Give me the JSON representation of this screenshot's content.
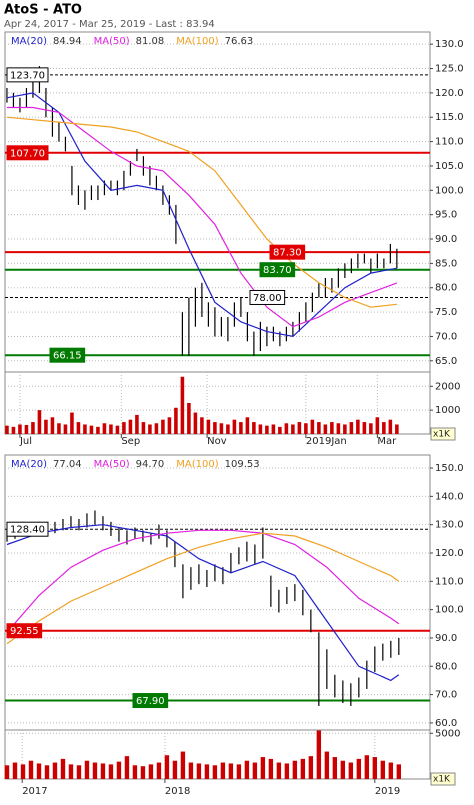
{
  "header": {
    "title": "AtoS - ATO",
    "subtitle": "Apr 24, 2017 - Mar 25, 2019 - Last : 83.94"
  },
  "chart_data": [
    {
      "type": "hlbar",
      "color": "#000000",
      "grid": true,
      "xlim": [
        -0.3,
        65.1
      ],
      "ylim": [
        62.7,
        132.5
      ],
      "yticks": [
        {
          "value": 65,
          "label": "65.0"
        },
        {
          "value": 70,
          "label": "70.0"
        },
        {
          "value": 75,
          "label": "75.0"
        },
        {
          "value": 80,
          "label": "80.0"
        },
        {
          "value": 85,
          "label": "85.0"
        },
        {
          "value": 90,
          "label": "90.0"
        },
        {
          "value": 95,
          "label": "95.0"
        },
        {
          "value": 100,
          "label": "100.0"
        },
        {
          "value": 105,
          "label": "105.0"
        },
        {
          "value": 110,
          "label": "110.0"
        },
        {
          "value": 115,
          "label": "115.0"
        },
        {
          "value": 120,
          "label": "120.0"
        },
        {
          "value": 125,
          "label": "125.0"
        },
        {
          "value": 130,
          "label": "130.0"
        }
      ],
      "high": [
        121,
        120,
        119,
        121,
        123,
        125.5,
        121,
        117,
        114,
        111,
        105,
        101,
        100,
        101,
        101,
        102,
        102,
        102,
        104,
        106,
        108.5,
        107,
        105,
        103,
        101,
        99,
        97,
        75,
        78,
        80,
        81,
        77,
        76,
        74,
        74,
        77,
        78,
        75,
        71,
        73,
        72,
        72,
        71,
        72,
        73,
        75,
        77,
        79,
        81,
        82,
        82,
        84,
        85,
        86,
        87,
        87,
        86,
        87,
        86,
        89,
        88
      ],
      "low": [
        118,
        117,
        116,
        117,
        119,
        120,
        115,
        111,
        110,
        108,
        99,
        97,
        96,
        98,
        98,
        99,
        100,
        99,
        100,
        103,
        106,
        103,
        101,
        100,
        97,
        95,
        89,
        66,
        66,
        72,
        74,
        72,
        70,
        70,
        69,
        72,
        74,
        69,
        66,
        67,
        68,
        69,
        68,
        69,
        70,
        71,
        73,
        75,
        78,
        78,
        79,
        80,
        82,
        83,
        84,
        85,
        83,
        84,
        84,
        85,
        84
      ],
      "series": [
        {
          "name": "MA(20)",
          "last": 84.94,
          "color": "#1f1fcc",
          "x": [
            0,
            4,
            8,
            12,
            16,
            20,
            24,
            28,
            32,
            36,
            40,
            44,
            48,
            52,
            56,
            60
          ],
          "values": [
            119,
            120,
            116,
            106,
            100,
            101,
            100,
            88,
            77,
            73,
            71,
            70,
            75,
            80,
            83,
            84
          ]
        },
        {
          "name": "MA(50)",
          "last": 81.08,
          "color": "#e020e0",
          "x": [
            0,
            4,
            8,
            12,
            16,
            20,
            24,
            28,
            32,
            36,
            40,
            44,
            48,
            52,
            56,
            60
          ],
          "values": [
            117,
            117,
            116,
            112,
            108,
            105,
            104,
            99,
            93,
            83,
            76,
            72,
            74,
            77,
            79,
            81
          ]
        },
        {
          "name": "MA(100)",
          "last": 76.63,
          "color": "#f0a020",
          "x": [
            0,
            4,
            8,
            12,
            16,
            20,
            24,
            28,
            32,
            36,
            40,
            44,
            48,
            52,
            56,
            60
          ],
          "values": [
            115,
            114.5,
            114,
            113.5,
            113,
            112,
            110,
            108,
            104,
            97,
            90,
            85,
            81,
            78,
            76,
            76.6
          ]
        }
      ],
      "levels": [
        {
          "value": 123.7,
          "label": "123.70",
          "color": "#000000",
          "style": "dashed"
        },
        {
          "value": 107.7,
          "label": "107.70",
          "color": "#e00000",
          "style": "solid"
        },
        {
          "value": 87.3,
          "label": "87.30",
          "color": "#e00000",
          "style": "solid"
        },
        {
          "value": 83.7,
          "label": "83.70",
          "color": "#007a00",
          "style": "solid"
        },
        {
          "value": 78,
          "label": "78.00",
          "color": "#000000",
          "style": "dashed"
        },
        {
          "value": 66.15,
          "label": "66.15",
          "color": "#007a00",
          "style": "solid"
        }
      ]
    },
    {
      "type": "bar",
      "color": "#cc0000",
      "grid": true,
      "unit": "x1K",
      "xlim": [
        -0.3,
        65.1
      ],
      "ylim": [
        0,
        2600
      ],
      "yticks": [
        1000,
        2000
      ],
      "xticks": [
        {
          "value": 2,
          "label": "Jul"
        },
        {
          "value": 17.6,
          "label": "Sep"
        },
        {
          "value": 30.8,
          "label": "Nov"
        },
        {
          "value": 46,
          "label": "2019Jan"
        },
        {
          "value": 57,
          "label": "Mar"
        }
      ],
      "values": [
        350,
        300,
        400,
        380,
        500,
        1000,
        600,
        700,
        450,
        400,
        900,
        500,
        400,
        350,
        300,
        450,
        400,
        350,
        500,
        600,
        800,
        500,
        400,
        450,
        600,
        700,
        1100,
        2400,
        1300,
        900,
        700,
        600,
        500,
        450,
        400,
        600,
        500,
        700,
        500,
        400,
        350,
        400,
        300,
        450,
        400,
        500,
        450,
        600,
        500,
        400,
        500,
        450,
        400,
        500,
        600,
        500,
        450,
        700,
        500,
        600,
        400
      ]
    },
    {
      "type": "hlbar",
      "color": "#000000",
      "grid": true,
      "xlim": [
        -0.25,
        52.9
      ],
      "ylim": [
        57.5,
        154.6
      ],
      "yticks": [
        {
          "value": 60,
          "label": "60.0"
        },
        {
          "value": 70,
          "label": "70.0"
        },
        {
          "value": 80,
          "label": "80.0"
        },
        {
          "value": 90,
          "label": "90.0"
        },
        {
          "value": 100,
          "label": "100.0"
        },
        {
          "value": 110,
          "label": "110.0"
        },
        {
          "value": 120,
          "label": "120.0"
        },
        {
          "value": 130,
          "label": "130.0"
        },
        {
          "value": 140,
          "label": "140.0"
        },
        {
          "value": 150,
          "label": "150.0"
        }
      ],
      "high": [
        128,
        129,
        131,
        130,
        131,
        130,
        131,
        132,
        133,
        132,
        134,
        135,
        133,
        131,
        129,
        128,
        129,
        128,
        127,
        130,
        128,
        124,
        116,
        115,
        116,
        114,
        116,
        115,
        120,
        122,
        124,
        123,
        129,
        112,
        107,
        108,
        109,
        107,
        100,
        92,
        86,
        77,
        75,
        74,
        76,
        82,
        87,
        88,
        89,
        90
      ],
      "low": [
        124,
        125,
        126,
        126,
        127,
        126,
        127,
        128,
        129,
        128,
        129,
        130,
        128,
        126,
        124,
        123,
        125,
        124,
        123,
        125,
        122,
        115,
        104,
        107,
        109,
        108,
        110,
        109,
        113,
        116,
        117,
        116,
        118,
        101,
        99,
        102,
        103,
        98,
        92,
        66,
        72,
        69,
        67,
        66,
        69,
        72,
        78,
        82,
        83,
        84
      ],
      "series": [
        {
          "name": "MA(20)",
          "last": 77.04,
          "color": "#1f1fcc",
          "x": [
            0,
            4,
            8,
            12,
            16,
            20,
            24,
            28,
            32,
            36,
            40,
            44,
            48,
            49
          ],
          "values": [
            123,
            127,
            129,
            130,
            128,
            126,
            118,
            113,
            117,
            112,
            96,
            80,
            75,
            77
          ]
        },
        {
          "name": "MA(50)",
          "last": {
            "value": 94.7,
            "label": "94.70"
          },
          "color": "#e020e0",
          "x": [
            0,
            4,
            8,
            12,
            16,
            20,
            24,
            28,
            32,
            36,
            40,
            44,
            48,
            49
          ],
          "values": [
            92,
            105,
            115,
            121,
            125,
            127,
            128,
            128,
            127,
            123,
            115,
            104,
            97,
            95
          ]
        },
        {
          "name": "MA(100)",
          "last": 109.53,
          "color": "#f0a020",
          "x": [
            0,
            4,
            8,
            12,
            16,
            20,
            24,
            28,
            32,
            36,
            40,
            44,
            48,
            49
          ],
          "values": [
            88,
            96,
            103,
            108,
            113,
            118,
            122,
            125,
            127,
            126,
            122,
            117,
            112,
            110
          ]
        }
      ],
      "levels": [
        {
          "value": 128.4,
          "label": "128.40",
          "color": "#000000",
          "style": "dashed"
        },
        {
          "value": 92.55,
          "label": "92.55",
          "color": "#e00000",
          "style": "solid"
        },
        {
          "value": 67.9,
          "label": "67.90",
          "color": "#007a00",
          "style": "solid"
        }
      ]
    },
    {
      "type": "bar",
      "color": "#cc0000",
      "grid": true,
      "unit": "x1K",
      "xlim": [
        -0.25,
        52.9
      ],
      "ylim": [
        0,
        5360
      ],
      "yticks": [
        5000
      ],
      "xticks": [
        {
          "value": 1.9,
          "label": "2017"
        },
        {
          "value": 19.75,
          "label": "2018"
        },
        {
          "value": 46,
          "label": "2019"
        }
      ],
      "values": [
        1500,
        1800,
        1600,
        2000,
        1700,
        1500,
        1800,
        2200,
        1600,
        1500,
        2000,
        1800,
        1700,
        1600,
        1900,
        2500,
        1500,
        1400,
        1600,
        1800,
        2600,
        2000,
        3000,
        1800,
        1700,
        1600,
        1500,
        1800,
        1700,
        1600,
        2000,
        1800,
        2400,
        2200,
        1800,
        1700,
        2000,
        2200,
        2500,
        5300,
        3000,
        2400,
        2000,
        1800,
        2200,
        2600,
        2400,
        2000,
        1800,
        1600
      ]
    }
  ]
}
